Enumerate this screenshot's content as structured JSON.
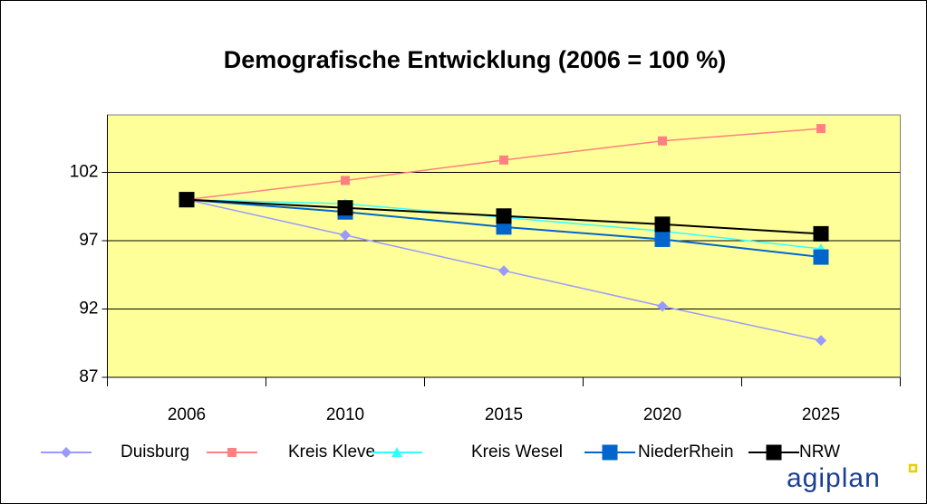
{
  "chart_data": {
    "type": "line",
    "title": "Demografische Entwicklung (2006 = 100 %)",
    "categories": [
      "2006",
      "2010",
      "2015",
      "2020",
      "2025"
    ],
    "series": [
      {
        "name": "Duisburg",
        "color": "#9999ff",
        "marker": "diamond",
        "values": [
          100,
          97.4,
          94.8,
          92.2,
          89.7
        ]
      },
      {
        "name": "Kreis Kleve",
        "color": "#ff8080",
        "marker": "square",
        "values": [
          100,
          101.4,
          102.9,
          104.3,
          105.2
        ]
      },
      {
        "name": "Kreis Wesel",
        "color": "#33ffff",
        "marker": "triangle",
        "values": [
          100,
          99.7,
          98.7,
          97.7,
          96.4
        ]
      },
      {
        "name": "NiederRhein",
        "color": "#0066cc",
        "marker": "bigsquare",
        "values": [
          100,
          99.1,
          98.0,
          97.1,
          95.8
        ]
      },
      {
        "name": "NRW",
        "color": "#000000",
        "marker": "bigsquare",
        "values": [
          100,
          99.4,
          98.8,
          98.2,
          97.5
        ]
      }
    ],
    "ylim": [
      87,
      106.2
    ],
    "yticks": [
      87,
      92,
      97,
      102
    ],
    "grid": true,
    "legend": "bottom",
    "logo": "agiplan"
  }
}
